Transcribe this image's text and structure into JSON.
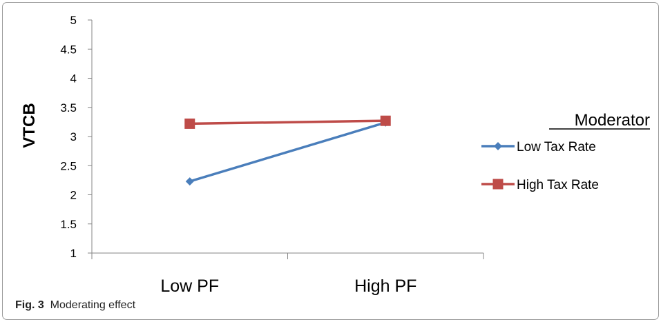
{
  "chart_data": {
    "type": "line",
    "title": "",
    "xlabel": "",
    "ylabel": "VTCB",
    "categories": [
      "Low PF",
      "High PF"
    ],
    "ylim": [
      1,
      5
    ],
    "yticks": [
      "1",
      "1.5",
      "2",
      "2.5",
      "3",
      "3.5",
      "4",
      "4.5",
      "5"
    ],
    "grid": false,
    "legend_title": "Moderator",
    "legend_position": "right",
    "series": [
      {
        "name": "Low Tax Rate",
        "values": [
          2.23,
          3.24
        ],
        "color": "#4a7ebb",
        "marker": "diamond"
      },
      {
        "name": "High Tax Rate",
        "values": [
          3.22,
          3.27
        ],
        "color": "#be4b48",
        "marker": "square"
      }
    ]
  },
  "caption": {
    "label": "Fig. 3",
    "text": "Moderating effect"
  }
}
